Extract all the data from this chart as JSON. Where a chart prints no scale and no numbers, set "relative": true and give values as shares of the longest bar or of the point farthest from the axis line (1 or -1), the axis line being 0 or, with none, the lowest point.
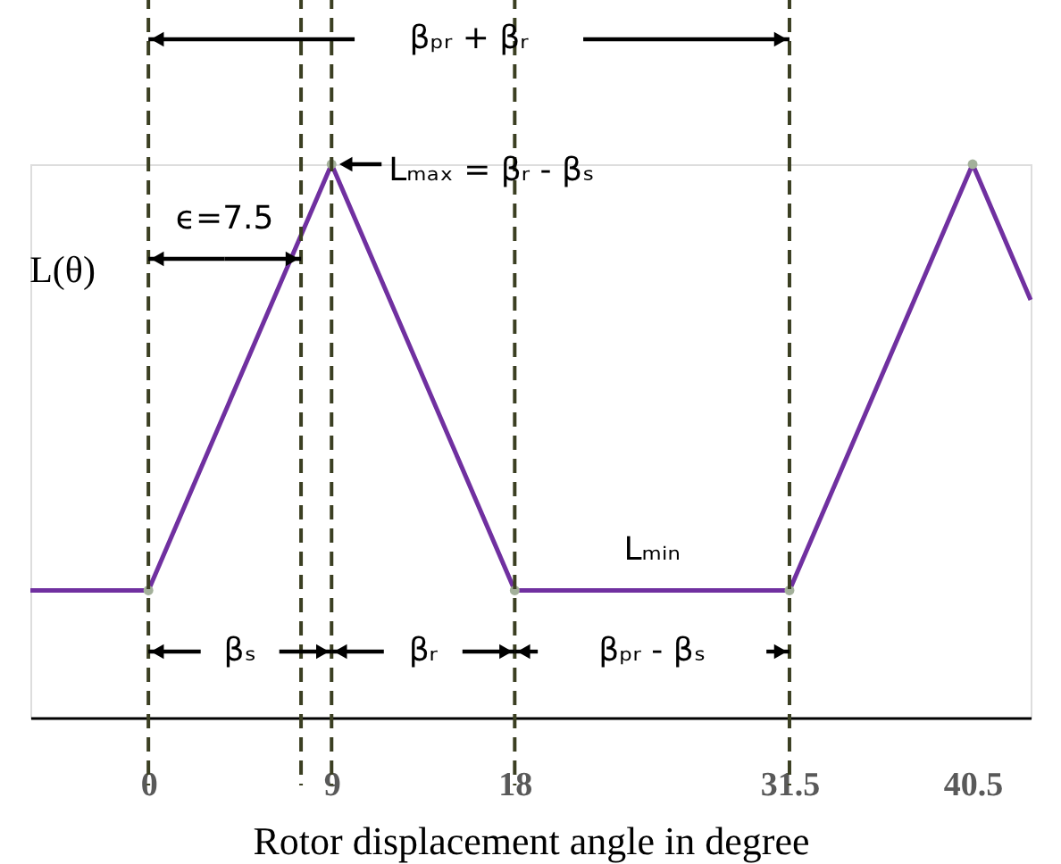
{
  "chart_data": {
    "type": "line",
    "relative": true,
    "x": [
      -5.8,
      0,
      9,
      18,
      31.5,
      40.5,
      43.35
    ],
    "series": [
      {
        "color": "#7030a0",
        "line_style": "solid",
        "values": [
          0.23,
          0.23,
          1,
          0.23,
          0.23,
          1,
          0.755
        ]
      }
    ],
    "xlim": [
      -5.8,
      43.35
    ],
    "xticks": [
      0,
      9,
      18,
      {
        "value": 31.5,
        "label": "31.5"
      },
      {
        "value": 40.5,
        "label": "40.5"
      }
    ],
    "marker": "circle",
    "legend": false,
    "xlabel": "Rotor displacement angle in degree",
    "ylabel": "L(θ)",
    "grid": false,
    "ref_lines": [
      {
        "axis": "x",
        "value": 0,
        "color": "#3b3f22",
        "line_style": "dashed"
      },
      {
        "axis": "x",
        "value": 7.5,
        "color": "#3b3f22",
        "line_style": "dashed"
      },
      {
        "axis": "x",
        "value": 9,
        "color": "#3b3f22",
        "line_style": "dashed"
      },
      {
        "axis": "x",
        "value": 18,
        "color": "#3b3f22",
        "line_style": "dashed"
      },
      {
        "axis": "x",
        "value": 31.5,
        "color": "#3b3f22",
        "line_style": "dashed"
      }
    ],
    "annotations": [
      "βₚᵣ + βᵣ",
      {
        "text": "Lₘₐₓ = βᵣ - βₛ",
        "x": 9,
        "y": 1
      },
      "ϵ=7.5",
      {
        "text": "Lₘᵢₙ",
        "x": 24.75,
        "y": 0.23
      },
      "βₛ",
      "βᵣ",
      "βₚᵣ - βₛ"
    ]
  }
}
